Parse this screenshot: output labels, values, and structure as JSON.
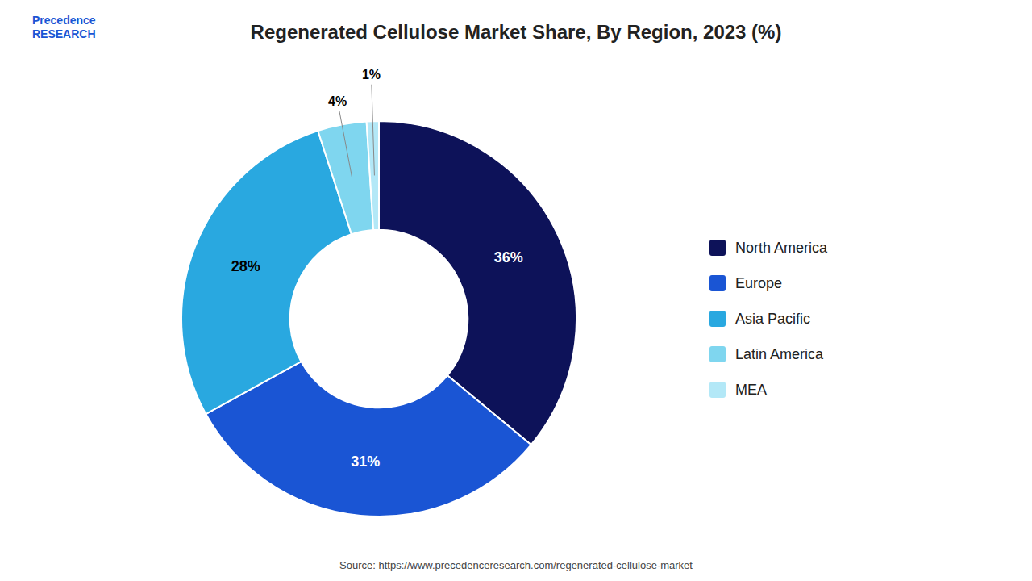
{
  "chart_data": {
    "type": "pie",
    "title": "Regenerated Cellulose Market Share, By Region, 2023 (%)",
    "categories": [
      "North America",
      "Europe",
      "Asia Pacific",
      "Latin America",
      "MEA"
    ],
    "values": [
      36,
      31,
      28,
      4,
      1
    ],
    "value_labels": [
      "36%",
      "31%",
      "28%",
      "4%",
      "1%"
    ],
    "colors": [
      "#0d1259",
      "#1a55d4",
      "#29a8e0",
      "#7fd6ef",
      "#b3e8f7"
    ],
    "data_labels": true,
    "legend": "right",
    "logo_text": [
      "Precedence",
      "RESEARCH"
    ],
    "source": "Source: https://www.precedenceresearch.com/regenerated-cellulose-market"
  }
}
